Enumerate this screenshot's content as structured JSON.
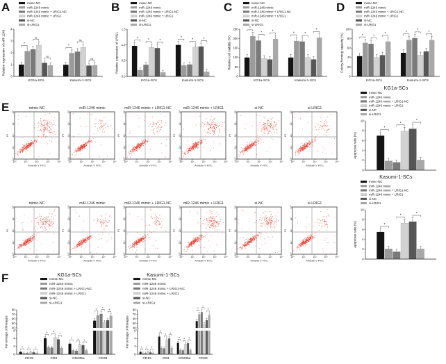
{
  "palette": [
    "#141414",
    "#9b9b9b",
    "#7a7a7a",
    "#d2d2d2",
    "#565656",
    "#a8a8a8"
  ],
  "legend_labels": [
    "mimic-NC",
    "miR-1246 mimic",
    "miR-1246 mimic + LRIG1-NC",
    "miR-1246 mimic + LRIG1",
    "si-NC",
    "si-LRIG1"
  ],
  "panels": {
    "A": {
      "letter": "A"
    },
    "B": {
      "letter": "B"
    },
    "C": {
      "letter": "C"
    },
    "D": {
      "letter": "D"
    },
    "E": {
      "letter": "E"
    },
    "F": {
      "letter": "F"
    }
  },
  "flow": {
    "type": "flow-cytometry-scatter",
    "xlabel": "Annexin V FITC",
    "ylabel": "PI",
    "tick_labels": [
      "10⁰",
      "10¹",
      "10²",
      "10³",
      "10⁴"
    ],
    "dot_color": "#e8392a",
    "rows": [
      {
        "cell_line": "KG1a-SCs",
        "plots": [
          {
            "title": "mimic-NC",
            "ur": "dense"
          },
          {
            "title": "miR-1246 mimic",
            "ur": "sparse"
          },
          {
            "title": "miR-1246 mimic + LRIG1-NC",
            "ur": "sparse"
          },
          {
            "title": "miR-1246 mimic + LRIG1",
            "ur": "dense"
          },
          {
            "title": "si-NC",
            "ur": "dense"
          },
          {
            "title": "si-LRIG1",
            "ur": "sparse"
          }
        ]
      },
      {
        "cell_line": "Kasumi-1-SCs",
        "plots": [
          {
            "title": "mimic-NC",
            "ur": "dense"
          },
          {
            "title": "miR-1246 mimic",
            "ur": "sparse"
          },
          {
            "title": "miR-1246 mimic + LRIG1-NC",
            "ur": "sparse"
          },
          {
            "title": "miR-1246 mimic + LRIG1",
            "ur": "dense"
          },
          {
            "title": "si-NC",
            "ur": "dense"
          },
          {
            "title": "si-LRIG1",
            "ur": "sparse"
          }
        ]
      }
    ]
  },
  "chart_data": [
    {
      "id": "A",
      "type": "bar",
      "ylabel": "Relative expression of miR-1246",
      "ylim": [
        0,
        4
      ],
      "yticks": [
        "0",
        "1",
        "2",
        "3",
        "4"
      ],
      "categories": [
        "KG1a-SCs",
        "Kasumi-1-SCs"
      ],
      "series": [
        {
          "name": "mimic-NC",
          "values": [
            1.0,
            0.98
          ]
        },
        {
          "name": "miR-1246 mimic",
          "values": [
            2.15,
            1.98
          ]
        },
        {
          "name": "miR-1246 mimic + LRIG1-NC",
          "values": [
            2.3,
            2.1
          ]
        },
        {
          "name": "miR-1246 mimic + LRIG1",
          "values": [
            2.65,
            2.45
          ]
        },
        {
          "name": "si-NC",
          "values": [
            1.15,
            0.92
          ]
        },
        {
          "name": "si-LRIG1",
          "values": [
            0.95,
            0.95
          ]
        }
      ],
      "sig": [
        {
          "c": 0,
          "p": [
            0,
            1
          ],
          "t": "*"
        },
        {
          "c": 0,
          "p": [
            2,
            3
          ],
          "t": "ns"
        },
        {
          "c": 0,
          "p": [
            4,
            5
          ],
          "t": "ns"
        },
        {
          "c": 1,
          "p": [
            0,
            1
          ],
          "t": "*"
        },
        {
          "c": 1,
          "p": [
            2,
            3
          ],
          "t": "ns"
        },
        {
          "c": 1,
          "p": [
            4,
            5
          ],
          "t": "ns"
        }
      ]
    },
    {
      "id": "B",
      "type": "bar",
      "ylabel": "Relative expression of LRIG1",
      "ylim": [
        0,
        1.5
      ],
      "yticks": [
        "0.0",
        "0.5",
        "1.0",
        "1.5"
      ],
      "categories": [
        "KG1a-SCs",
        "Kasumi-1-SCs"
      ],
      "series": [
        {
          "name": "mimic-NC",
          "values": [
            0.97,
            1.0
          ]
        },
        {
          "name": "miR-1246 mimic",
          "values": [
            0.2,
            0.35
          ]
        },
        {
          "name": "miR-1246 mimic + LRIG1-NC",
          "values": [
            0.37,
            0.38
          ]
        },
        {
          "name": "miR-1246 mimic + LRIG1",
          "values": [
            0.92,
            0.93
          ]
        },
        {
          "name": "si-NC",
          "values": [
            0.9,
            0.95
          ]
        },
        {
          "name": "si-LRIG1",
          "values": [
            0.13,
            0.15
          ]
        }
      ],
      "sig": [
        {
          "c": 0,
          "p": [
            0,
            1
          ],
          "t": "*"
        },
        {
          "c": 0,
          "p": [
            2,
            3
          ],
          "t": "*"
        },
        {
          "c": 0,
          "p": [
            4,
            5
          ],
          "t": "*"
        },
        {
          "c": 1,
          "p": [
            0,
            1
          ],
          "t": "*"
        },
        {
          "c": 1,
          "p": [
            2,
            3
          ],
          "t": "*"
        },
        {
          "c": 1,
          "p": [
            4,
            5
          ],
          "t": "*"
        }
      ]
    },
    {
      "id": "C",
      "type": "bar",
      "ylabel": "Relative cell viability (%)",
      "ylim": [
        0,
        250
      ],
      "yticks": [
        "0",
        "50",
        "100",
        "150",
        "200",
        "250"
      ],
      "categories": [
        "KG1a-SCs",
        "Kasumi-1-SCs"
      ],
      "series": [
        {
          "name": "mimic-NC",
          "values": [
            100,
            100
          ]
        },
        {
          "name": "miR-1246 mimic",
          "values": [
            213,
            188
          ]
        },
        {
          "name": "miR-1246 mimic + LRIG1-NC",
          "values": [
            190,
            185
          ]
        },
        {
          "name": "miR-1246 mimic + LRIG1",
          "values": [
            95,
            100
          ]
        },
        {
          "name": "si-NC",
          "values": [
            90,
            90
          ]
        },
        {
          "name": "si-LRIG1",
          "values": [
            198,
            205
          ]
        }
      ],
      "sig": [
        {
          "c": 0,
          "p": [
            0,
            1
          ],
          "t": "*"
        },
        {
          "c": 0,
          "p": [
            2,
            3
          ],
          "t": "*"
        },
        {
          "c": 0,
          "p": [
            4,
            5
          ],
          "t": "*"
        },
        {
          "c": 1,
          "p": [
            0,
            1
          ],
          "t": "*"
        },
        {
          "c": 1,
          "p": [
            2,
            3
          ],
          "t": "*"
        },
        {
          "c": 1,
          "p": [
            4,
            5
          ],
          "t": "*"
        }
      ]
    },
    {
      "id": "D",
      "type": "bar",
      "ylabel": "Colony-forming capacity (%)",
      "ylim": [
        0,
        100
      ],
      "yticks": [
        "0",
        "20",
        "40",
        "60",
        "80",
        "100"
      ],
      "categories": [
        "KG1a-SCs",
        "Kasumi-1-SCs"
      ],
      "series": [
        {
          "name": "mimic-NC",
          "values": [
            43,
            50
          ]
        },
        {
          "name": "miR-1246 mimic",
          "values": [
            71,
            77
          ]
        },
        {
          "name": "miR-1246 mimic + LRIG1-NC",
          "values": [
            69,
            81
          ]
        },
        {
          "name": "miR-1246 mimic + LRIG1",
          "values": [
            40,
            45
          ]
        },
        {
          "name": "si-NC",
          "values": [
            45,
            53
          ]
        },
        {
          "name": "si-LRIG1",
          "values": [
            74,
            77
          ]
        }
      ],
      "sig": [
        {
          "c": 0,
          "p": [
            0,
            1
          ],
          "t": "*"
        },
        {
          "c": 0,
          "p": [
            2,
            3
          ],
          "t": "*"
        },
        {
          "c": 0,
          "p": [
            4,
            5
          ],
          "t": "*"
        },
        {
          "c": 1,
          "p": [
            0,
            1
          ],
          "t": "*"
        },
        {
          "c": 1,
          "p": [
            2,
            3
          ],
          "t": "*"
        },
        {
          "c": 1,
          "p": [
            4,
            5
          ],
          "t": "*"
        }
      ]
    },
    {
      "id": "E1",
      "type": "bar",
      "title": "KG1a-SCs",
      "ylabel": "Apoptosis ratio (%)",
      "ylim": [
        0,
        10
      ],
      "yticks": [
        "0",
        "2",
        "4",
        "6",
        "8",
        "10"
      ],
      "categories": [
        ""
      ],
      "series": [
        {
          "name": "mimic-NC",
          "values": [
            7.0
          ]
        },
        {
          "name": "miR-1246 mimic",
          "values": [
            1.9
          ]
        },
        {
          "name": "miR-1246 mimic + LRIG1-NC",
          "values": [
            1.6
          ]
        },
        {
          "name": "miR-1246 mimic + LRIG1",
          "values": [
            7.9
          ]
        },
        {
          "name": "si-NC",
          "values": [
            8.4
          ]
        },
        {
          "name": "si-LRIG1",
          "values": [
            2.1
          ]
        }
      ],
      "sig": [
        {
          "c": 0,
          "p": [
            0,
            1
          ],
          "t": "*"
        },
        {
          "c": 0,
          "p": [
            2,
            3
          ],
          "t": "*"
        },
        {
          "c": 0,
          "p": [
            4,
            5
          ],
          "t": "*"
        }
      ]
    },
    {
      "id": "E2",
      "type": "bar",
      "title": "Kasumi-1-SCs",
      "ylabel": "Apoptosis ratio (%)",
      "ylim": [
        0,
        10
      ],
      "yticks": [
        "0",
        "2",
        "4",
        "6",
        "8",
        "10"
      ],
      "categories": [
        ""
      ],
      "series": [
        {
          "name": "mimic-NC",
          "values": [
            5.5
          ]
        },
        {
          "name": "miR-1246 mimic",
          "values": [
            2.1
          ]
        },
        {
          "name": "miR-1246 mimic + LRIG1-NC",
          "values": [
            1.5
          ]
        },
        {
          "name": "miR-1246 mimic + LRIG1",
          "values": [
            7.3
          ]
        },
        {
          "name": "si-NC",
          "values": [
            7.6
          ]
        },
        {
          "name": "si-LRIG1",
          "values": [
            2.1
          ]
        }
      ],
      "sig": [
        {
          "c": 0,
          "p": [
            0,
            1
          ],
          "t": "*"
        },
        {
          "c": 0,
          "p": [
            2,
            3
          ],
          "t": "*"
        },
        {
          "c": 0,
          "p": [
            4,
            5
          ],
          "t": "*"
        }
      ]
    },
    {
      "id": "F1",
      "type": "bar",
      "title": "KG1a-SCs",
      "ylabel": "Percentage of lineages",
      "broken": {
        "lower": [
          0,
          6
        ],
        "lower_ticks": [
          "0",
          "2",
          "4",
          "6"
        ],
        "upper": [
          40,
          80
        ],
        "upper_ticks": [
          "40",
          "50",
          "60",
          "70",
          "80"
        ]
      },
      "categories": [
        "CD19",
        "CD3",
        "CD235a",
        "CD33"
      ],
      "series": [
        {
          "name": "mimic-NC",
          "values": [
            0.6,
            4.1,
            2.7,
            56
          ]
        },
        {
          "name": "miR-1246 mimic",
          "values": [
            0.3,
            1.8,
            1.0,
            68
          ]
        },
        {
          "name": "miR-1246 mimic + LRIG1-NC",
          "values": [
            0.3,
            1.7,
            0.9,
            71
          ]
        },
        {
          "name": "miR-1246 mimic + LRIG1",
          "values": [
            0.55,
            4.3,
            2.5,
            52
          ]
        },
        {
          "name": "si-NC",
          "values": [
            0.5,
            3.8,
            2.3,
            57
          ]
        },
        {
          "name": "si-LRIG1",
          "values": [
            0.3,
            1.6,
            1.0,
            67
          ]
        }
      ],
      "sig": [
        {
          "c": 0,
          "p": [
            0,
            1
          ],
          "t": "*"
        },
        {
          "c": 0,
          "p": [
            2,
            3
          ],
          "t": "*"
        },
        {
          "c": 0,
          "p": [
            4,
            5
          ],
          "t": "*"
        },
        {
          "c": 1,
          "p": [
            0,
            1
          ],
          "t": "*"
        },
        {
          "c": 1,
          "p": [
            2,
            3
          ],
          "t": "*"
        },
        {
          "c": 1,
          "p": [
            4,
            5
          ],
          "t": "*"
        },
        {
          "c": 2,
          "p": [
            0,
            1
          ],
          "t": "*"
        },
        {
          "c": 2,
          "p": [
            2,
            3
          ],
          "t": "*"
        },
        {
          "c": 2,
          "p": [
            4,
            5
          ],
          "t": "*"
        },
        {
          "c": 3,
          "p": [
            0,
            1
          ],
          "t": "*"
        },
        {
          "c": 3,
          "p": [
            2,
            3
          ],
          "t": "*"
        },
        {
          "c": 3,
          "p": [
            4,
            5
          ],
          "t": "*"
        }
      ]
    },
    {
      "id": "F2",
      "type": "bar",
      "title": "Kasumi-1-SCs",
      "ylabel": "Percentage of lineages",
      "broken": {
        "lower": [
          0,
          6
        ],
        "lower_ticks": [
          "0",
          "2",
          "4",
          "6"
        ],
        "upper": [
          40,
          80
        ],
        "upper_ticks": [
          "40",
          "50",
          "60",
          "70",
          "80"
        ]
      },
      "categories": [
        "CD19",
        "CD3",
        "CD235a",
        "CD33"
      ],
      "series": [
        {
          "name": "mimic-NC",
          "values": [
            0.6,
            4.5,
            2.9,
            55
          ]
        },
        {
          "name": "miR-1246 mimic",
          "values": [
            0.3,
            1.6,
            1.1,
            70
          ]
        },
        {
          "name": "miR-1246 mimic + LRIG1-NC",
          "values": [
            0.3,
            1.5,
            1.0,
            75
          ]
        },
        {
          "name": "miR-1246 mimic + LRIG1",
          "values": [
            0.6,
            3.7,
            2.6,
            48
          ]
        },
        {
          "name": "si-NC",
          "values": [
            0.5,
            4.0,
            2.8,
            57
          ]
        },
        {
          "name": "si-LRIG1",
          "values": [
            0.3,
            1.6,
            1.1,
            68
          ]
        }
      ],
      "sig": [
        {
          "c": 0,
          "p": [
            0,
            1
          ],
          "t": "*"
        },
        {
          "c": 0,
          "p": [
            2,
            3
          ],
          "t": "*"
        },
        {
          "c": 0,
          "p": [
            4,
            5
          ],
          "t": "*"
        },
        {
          "c": 1,
          "p": [
            0,
            1
          ],
          "t": "*"
        },
        {
          "c": 1,
          "p": [
            2,
            3
          ],
          "t": "*"
        },
        {
          "c": 1,
          "p": [
            4,
            5
          ],
          "t": "*"
        },
        {
          "c": 2,
          "p": [
            0,
            1
          ],
          "t": "*"
        },
        {
          "c": 2,
          "p": [
            2,
            3
          ],
          "t": "*"
        },
        {
          "c": 2,
          "p": [
            4,
            5
          ],
          "t": "*"
        },
        {
          "c": 3,
          "p": [
            0,
            1
          ],
          "t": "*"
        },
        {
          "c": 3,
          "p": [
            2,
            3
          ],
          "t": "*"
        },
        {
          "c": 3,
          "p": [
            4,
            5
          ],
          "t": "*"
        }
      ]
    }
  ]
}
